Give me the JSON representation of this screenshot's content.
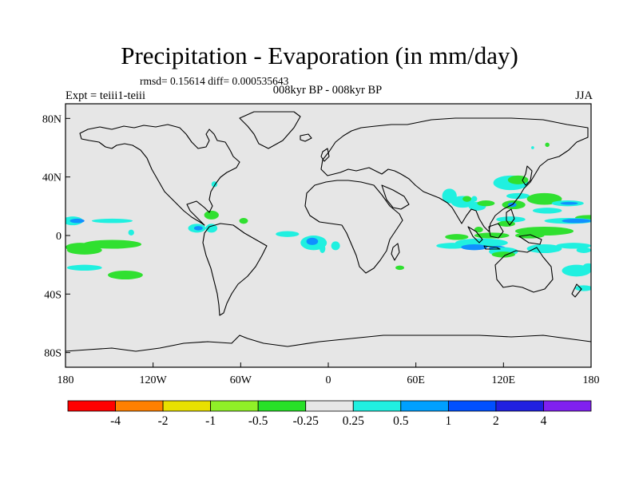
{
  "title": "Precipitation - Evaporation (in mm/day)",
  "stats": "rmsd= 0.15614 diff= 0.000535643",
  "subtitle": "008kyr BP - 008kyr BP",
  "expt": "Expt = teiii1-teiii",
  "season": "JJA",
  "axes": {
    "y_ticks": [
      {
        "value": 80,
        "label": "80N"
      },
      {
        "value": 40,
        "label": "40N"
      },
      {
        "value": 0,
        "label": "0"
      },
      {
        "value": -40,
        "label": "40S"
      },
      {
        "value": -80,
        "label": "80S"
      }
    ],
    "x_ticks": [
      {
        "value": -180,
        "label": "180"
      },
      {
        "value": -120,
        "label": "120W"
      },
      {
        "value": -60,
        "label": "60W"
      },
      {
        "value": 0,
        "label": "0"
      },
      {
        "value": 60,
        "label": "60E"
      },
      {
        "value": 120,
        "label": "120E"
      },
      {
        "value": 180,
        "label": "180"
      }
    ],
    "lon_range": [
      -180,
      180
    ],
    "lat_range": [
      -90,
      90
    ]
  },
  "colors": {
    "land_ocean_background": "#e6e6e6",
    "coastline": "#000000"
  },
  "colorbar": {
    "colors": [
      "#ff0000",
      "#ff8000",
      "#e8e000",
      "#90f028",
      "#28e028",
      "#e6e6e6",
      "#20f0e0",
      "#00a0ff",
      "#0050ff",
      "#2020e0",
      "#8020f0"
    ],
    "labels": [
      "-4",
      "-2",
      "-1",
      "-0.5",
      "-0.25",
      "0.25",
      "0.5",
      "1",
      "2",
      "4"
    ]
  },
  "anomaly_regions": [
    {
      "class": "green",
      "lon": 178,
      "lat": 12,
      "rx": 9,
      "ry": 2
    },
    {
      "class": "green",
      "lon": -170,
      "lat": -8,
      "rx": 10,
      "ry": 3
    },
    {
      "class": "green",
      "lon": -148,
      "lat": -6,
      "rx": 20,
      "ry": 3
    },
    {
      "class": "green",
      "lon": -167,
      "lat": -10,
      "rx": 12,
      "ry": 3
    },
    {
      "class": "cyan",
      "lon": -167,
      "lat": -22,
      "rx": 12,
      "ry": 2
    },
    {
      "class": "green",
      "lon": -139,
      "lat": -27,
      "rx": 12,
      "ry": 3
    },
    {
      "class": "cyan",
      "lon": -175,
      "lat": 10,
      "rx": 7,
      "ry": 3
    },
    {
      "class": "blue",
      "lon": -172,
      "lat": 10,
      "rx": 5,
      "ry": 1.5
    },
    {
      "class": "cyan",
      "lon": -148,
      "lat": 10,
      "rx": 14,
      "ry": 1.5
    },
    {
      "class": "cyan",
      "lon": -135,
      "lat": 2,
      "rx": 2,
      "ry": 2
    },
    {
      "class": "cyan",
      "lon": -90,
      "lat": 5,
      "rx": 6,
      "ry": 3
    },
    {
      "class": "blue",
      "lon": -89,
      "lat": 5,
      "rx": 3,
      "ry": 1.5
    },
    {
      "class": "cyan",
      "lon": -80,
      "lat": 5,
      "rx": 4,
      "ry": 3
    },
    {
      "class": "green",
      "lon": -80,
      "lat": 14,
      "rx": 5,
      "ry": 3
    },
    {
      "class": "cyan",
      "lon": -78,
      "lat": 35,
      "rx": 2,
      "ry": 2
    },
    {
      "class": "green",
      "lon": -58,
      "lat": 10,
      "rx": 3,
      "ry": 2
    },
    {
      "class": "cyan",
      "lon": -28,
      "lat": 1,
      "rx": 8,
      "ry": 2
    },
    {
      "class": "cyan",
      "lon": -10,
      "lat": -5,
      "rx": 9,
      "ry": 5
    },
    {
      "class": "blue",
      "lon": -11,
      "lat": -4,
      "rx": 4,
      "ry": 2.5
    },
    {
      "class": "cyan",
      "lon": 5,
      "lat": -7,
      "rx": 3,
      "ry": 3
    },
    {
      "class": "cyan",
      "lon": -4,
      "lat": -9,
      "rx": 2,
      "ry": 3
    },
    {
      "class": "green",
      "lon": 49,
      "lat": -22,
      "rx": 3,
      "ry": 1.5
    },
    {
      "class": "cyan",
      "lon": 83,
      "lat": 27,
      "rx": 5,
      "ry": 5
    },
    {
      "class": "cyan",
      "lon": 92,
      "lat": 23,
      "rx": 8,
      "ry": 4
    },
    {
      "class": "green",
      "lon": 95,
      "lat": 25,
      "rx": 3,
      "ry": 2
    },
    {
      "class": "cyan",
      "lon": 102,
      "lat": 20,
      "rx": 6,
      "ry": 3
    },
    {
      "class": "green",
      "lon": 108,
      "lat": 22,
      "rx": 6,
      "ry": 2
    },
    {
      "class": "cyan",
      "lon": 100,
      "lat": 25,
      "rx": 2,
      "ry": 2
    },
    {
      "class": "cyan",
      "lon": 125,
      "lat": 36,
      "rx": 12,
      "ry": 5
    },
    {
      "class": "green",
      "lon": 130,
      "lat": 38,
      "rx": 7,
      "ry": 3
    },
    {
      "class": "cyan",
      "lon": 130,
      "lat": 27,
      "rx": 8,
      "ry": 2
    },
    {
      "class": "green",
      "lon": 127,
      "lat": 21,
      "rx": 8,
      "ry": 3
    },
    {
      "class": "blue",
      "lon": 126,
      "lat": 21,
      "rx": 3,
      "ry": 1.5
    },
    {
      "class": "green",
      "lon": 148,
      "lat": 25,
      "rx": 12,
      "ry": 4
    },
    {
      "class": "cyan",
      "lon": 164,
      "lat": 22,
      "rx": 11,
      "ry": 2
    },
    {
      "class": "blue",
      "lon": 165,
      "lat": 22,
      "rx": 6,
      "ry": 1
    },
    {
      "class": "cyan",
      "lon": 150,
      "lat": 17,
      "rx": 10,
      "ry": 2
    },
    {
      "class": "cyan",
      "lon": 165,
      "lat": 10,
      "rx": 17,
      "ry": 2
    },
    {
      "class": "blue",
      "lon": 170,
      "lat": 10,
      "rx": 10,
      "ry": 1.5
    },
    {
      "class": "cyan",
      "lon": 125,
      "lat": 11,
      "rx": 10,
      "ry": 2
    },
    {
      "class": "green",
      "lon": 122,
      "lat": 8,
      "rx": 6,
      "ry": 2
    },
    {
      "class": "green",
      "lon": 148,
      "lat": 3,
      "rx": 20,
      "ry": 3
    },
    {
      "class": "green",
      "lon": 138,
      "lat": 0,
      "rx": 10,
      "ry": 2
    },
    {
      "class": "green",
      "lon": 112,
      "lat": 0,
      "rx": 12,
      "ry": 2
    },
    {
      "class": "green",
      "lon": 88,
      "lat": -1,
      "rx": 8,
      "ry": 2
    },
    {
      "class": "green",
      "lon": 103,
      "lat": 4,
      "rx": 3,
      "ry": 2
    },
    {
      "class": "cyan",
      "lon": 105,
      "lat": -5,
      "rx": 18,
      "ry": 3
    },
    {
      "class": "cyan",
      "lon": 85,
      "lat": -7,
      "rx": 11,
      "ry": 2
    },
    {
      "class": "blue",
      "lon": 100,
      "lat": -8,
      "rx": 9,
      "ry": 2
    },
    {
      "class": "blue",
      "lon": 116,
      "lat": -9,
      "rx": 6,
      "ry": 2
    },
    {
      "class": "cyan",
      "lon": 120,
      "lat": -11,
      "rx": 10,
      "ry": 3
    },
    {
      "class": "green",
      "lon": 120,
      "lat": -13,
      "rx": 8,
      "ry": 2
    },
    {
      "class": "cyan",
      "lon": 148,
      "lat": -9,
      "rx": 12,
      "ry": 3
    },
    {
      "class": "cyan",
      "lon": 168,
      "lat": -7,
      "rx": 12,
      "ry": 2
    },
    {
      "class": "cyan",
      "lon": 175,
      "lat": -10,
      "rx": 5,
      "ry": 2
    },
    {
      "class": "cyan",
      "lon": 170,
      "lat": -24,
      "rx": 10,
      "ry": 4
    },
    {
      "class": "cyan",
      "lon": 178,
      "lat": -22,
      "rx": 4,
      "ry": 3
    },
    {
      "class": "cyan",
      "lon": 175,
      "lat": -36,
      "rx": 6,
      "ry": 2
    },
    {
      "class": "green",
      "lon": 150,
      "lat": 62,
      "rx": 1.5,
      "ry": 1.5
    },
    {
      "class": "cyan",
      "lon": 140,
      "lat": 60,
      "rx": 1,
      "ry": 1
    }
  ]
}
